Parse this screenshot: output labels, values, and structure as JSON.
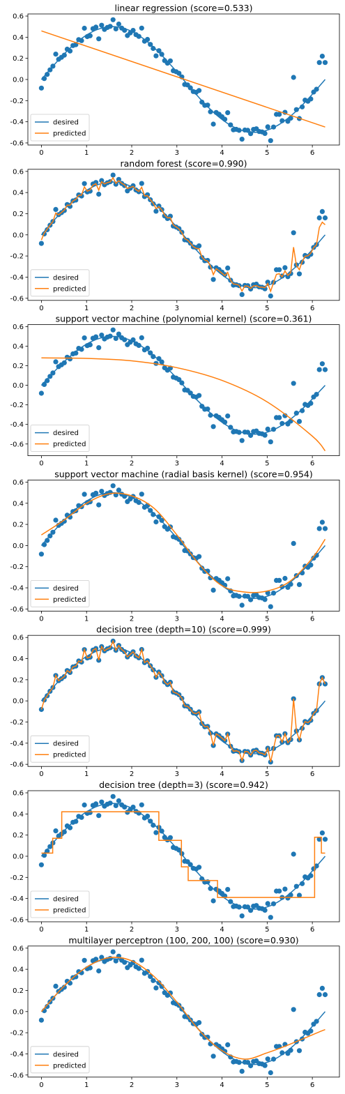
{
  "colors": {
    "desired": "#1f77b4",
    "predicted": "#ff7f0e"
  },
  "legend": {
    "desired_label": "desired",
    "predicted_label": "predicted",
    "placement": "lower-left"
  },
  "chart_data": [
    {
      "type": "line",
      "title": "linear regression (score=0.533)",
      "xlim": [
        -0.3,
        6.6
      ],
      "ylim": [
        -0.62,
        0.62
      ],
      "xticks": [
        0,
        1,
        2,
        3,
        4,
        5,
        6
      ],
      "yticks": [
        -0.6,
        -0.4,
        -0.2,
        0.0,
        0.2,
        0.4,
        0.6
      ],
      "predicted": {
        "kind": "linear",
        "x": [
          0,
          6.283
        ],
        "y": [
          0.46,
          -0.45
        ]
      }
    },
    {
      "type": "line",
      "title": "random forest (score=0.990)",
      "xlim": [
        -0.3,
        6.6
      ],
      "ylim": [
        -0.62,
        0.62
      ],
      "xticks": [
        0,
        1,
        2,
        3,
        4,
        5,
        6
      ],
      "yticks": [
        -0.6,
        -0.4,
        -0.2,
        0.0,
        0.2,
        0.4,
        0.6
      ],
      "predicted": {
        "kind": "random-forest"
      }
    },
    {
      "type": "line",
      "title": "support vector machine (polynomial kernel) (score=0.361)",
      "xlim": [
        -0.3,
        6.6
      ],
      "ylim": [
        -0.72,
        0.62
      ],
      "xticks": [
        0,
        1,
        2,
        3,
        4,
        5,
        6
      ],
      "yticks": [
        -0.6,
        -0.4,
        -0.2,
        0.0,
        0.2,
        0.4,
        0.6
      ],
      "predicted": {
        "kind": "polynomial",
        "x": [
          0,
          1,
          2,
          3,
          4,
          5,
          6,
          6.283
        ],
        "y": [
          0.28,
          0.275,
          0.25,
          0.18,
          0.05,
          -0.17,
          -0.52,
          -0.67
        ]
      }
    },
    {
      "type": "line",
      "title": "support vector machine (radial basis kernel) (score=0.954)",
      "xlim": [
        -0.3,
        6.6
      ],
      "ylim": [
        -0.62,
        0.62
      ],
      "xticks": [
        0,
        1,
        2,
        3,
        4,
        5,
        6
      ],
      "yticks": [
        -0.6,
        -0.4,
        -0.2,
        0.0,
        0.2,
        0.4,
        0.6
      ],
      "predicted": {
        "kind": "rbf",
        "x": [
          0,
          0.5,
          1.0,
          1.5,
          2.0,
          2.5,
          3.0,
          3.5,
          4.0,
          4.5,
          5.0,
          5.5,
          6.0,
          6.283
        ],
        "y": [
          0.1,
          0.24,
          0.4,
          0.49,
          0.47,
          0.35,
          0.1,
          -0.18,
          -0.38,
          -0.44,
          -0.43,
          -0.34,
          -0.12,
          0.06
        ]
      }
    },
    {
      "type": "line",
      "title": "decision tree (depth=10) (score=0.999)",
      "xlim": [
        -0.3,
        6.6
      ],
      "ylim": [
        -0.62,
        0.62
      ],
      "xticks": [
        0,
        1,
        2,
        3,
        4,
        5,
        6
      ],
      "yticks": [
        -0.6,
        -0.4,
        -0.2,
        0.0,
        0.2,
        0.4,
        0.6
      ],
      "predicted": {
        "kind": "tree-deep"
      }
    },
    {
      "type": "line",
      "title": "decision tree (depth=3) (score=0.942)",
      "xlim": [
        -0.3,
        6.6
      ],
      "ylim": [
        -0.62,
        0.62
      ],
      "xticks": [
        0,
        1,
        2,
        3,
        4,
        5,
        6
      ],
      "yticks": [
        -0.6,
        -0.4,
        -0.2,
        0.0,
        0.2,
        0.4,
        0.6
      ],
      "predicted": {
        "kind": "step",
        "x": [
          0,
          0.25,
          0.25,
          0.45,
          0.45,
          2.6,
          2.6,
          3.1,
          3.1,
          3.25,
          3.25,
          3.9,
          3.9,
          6.05,
          6.05,
          6.2,
          6.2,
          6.283
        ],
        "y": [
          0.03,
          0.03,
          0.17,
          0.17,
          0.42,
          0.42,
          0.15,
          0.15,
          -0.1,
          -0.1,
          -0.23,
          -0.23,
          -0.39,
          -0.39,
          0.18,
          0.18,
          0.03,
          0.03
        ]
      }
    },
    {
      "type": "line",
      "title": "multilayer perceptron (100, 200, 100) (score=0.930)",
      "xlim": [
        -0.3,
        6.6
      ],
      "ylim": [
        -0.62,
        0.62
      ],
      "xticks": [
        0,
        1,
        2,
        3,
        4,
        5,
        6
      ],
      "yticks": [
        -0.6,
        -0.4,
        -0.2,
        0.0,
        0.2,
        0.4,
        0.6
      ],
      "predicted": {
        "kind": "mlp",
        "x": [
          0,
          0.5,
          1.0,
          1.5,
          2.0,
          2.5,
          3.0,
          3.5,
          4.0,
          4.5,
          5.0,
          5.5,
          6.0,
          6.283
        ],
        "y": [
          0.0,
          0.24,
          0.42,
          0.51,
          0.48,
          0.33,
          0.09,
          -0.18,
          -0.37,
          -0.45,
          -0.39,
          -0.31,
          -0.22,
          -0.17
        ]
      }
    }
  ]
}
